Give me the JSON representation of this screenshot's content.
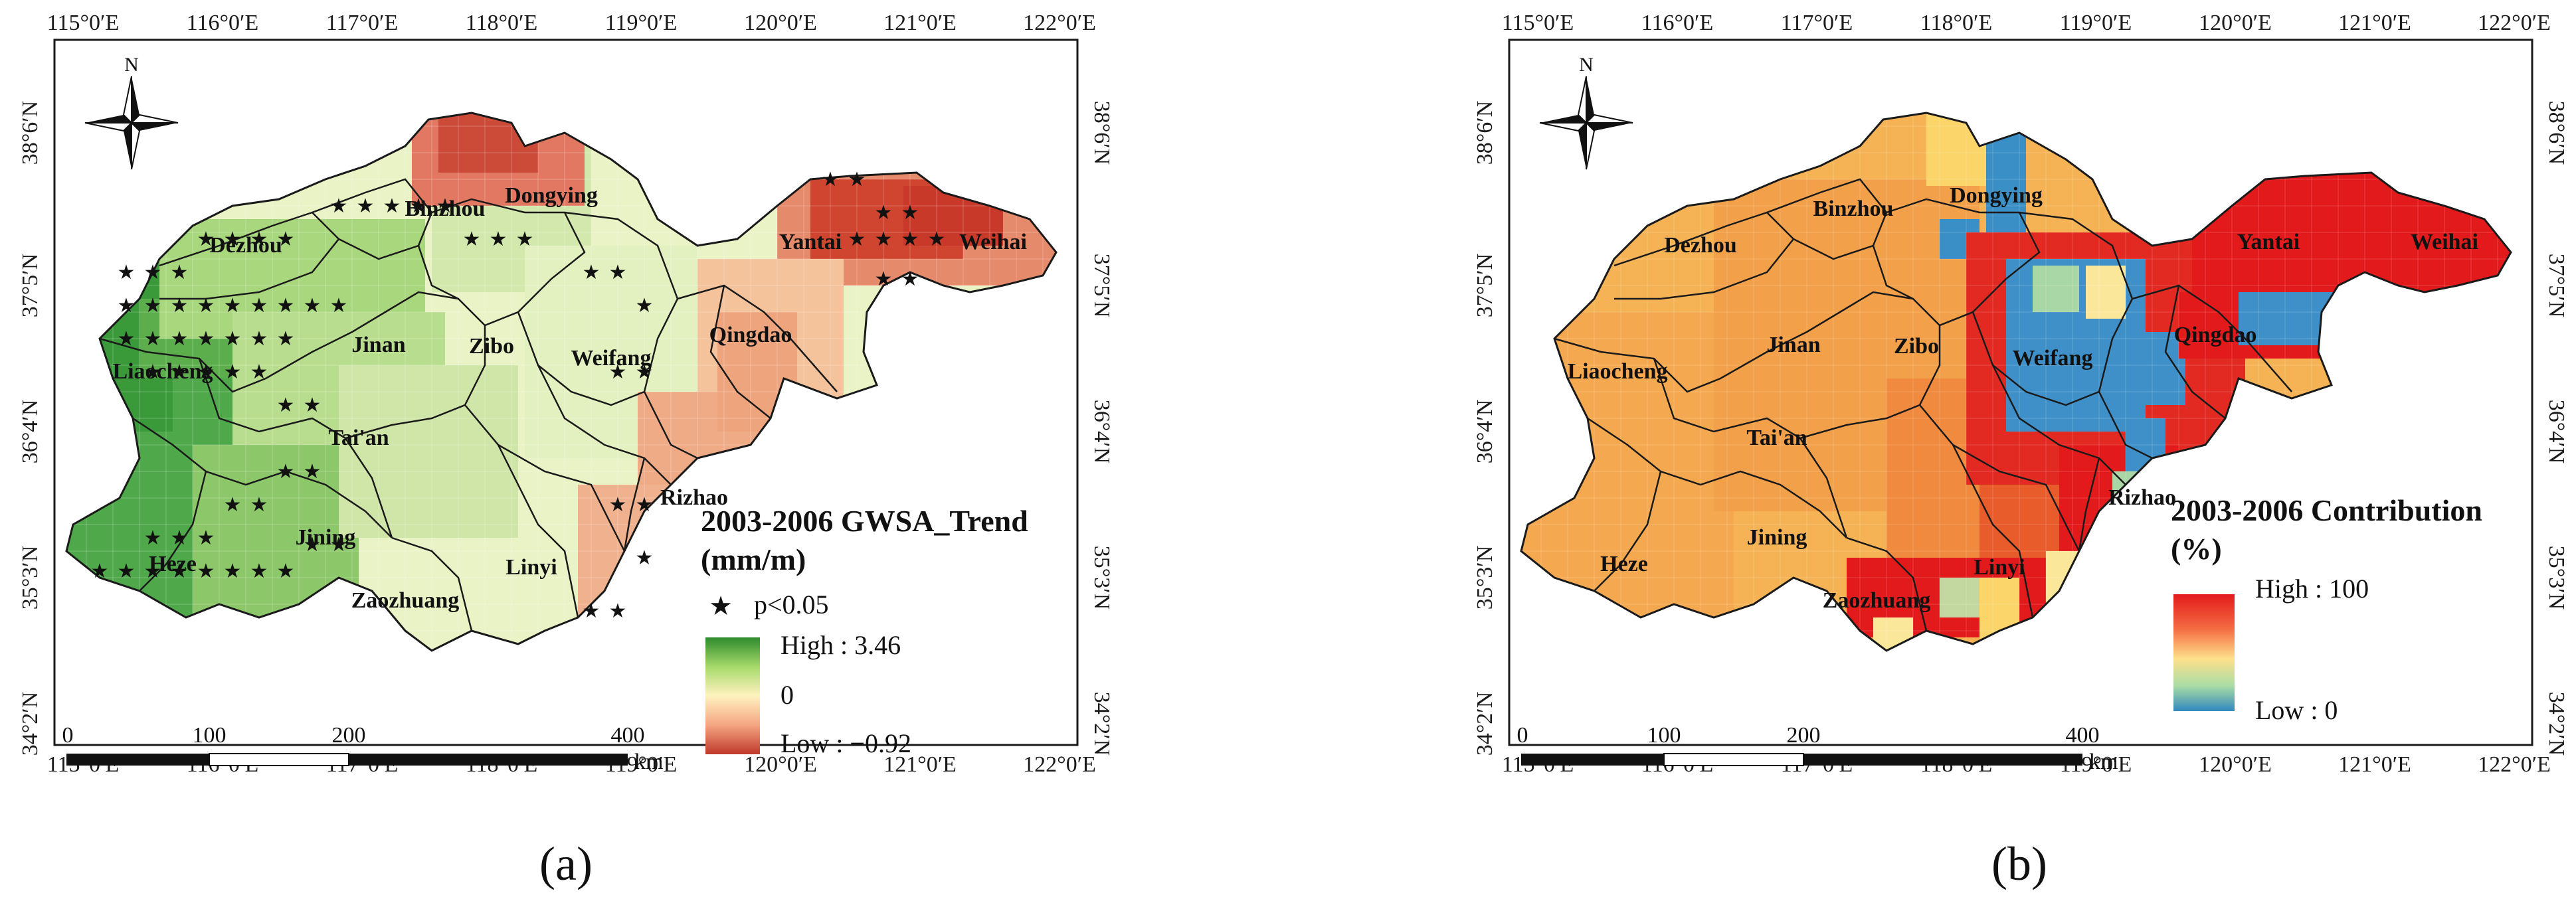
{
  "panels": [
    {
      "id": "a",
      "caption": "(a)",
      "legend": {
        "title_line1": "2003-2006 GWSA_Trend",
        "title_line2": "(mm/m)",
        "significance_label": "p<0.05",
        "high_label": "High : 3.46",
        "zero_label": "0",
        "low_label": "Low : −0.92",
        "ramp_colors": [
          "#2e8b2e",
          "#a6d96a",
          "#fff2c0",
          "#f4a582",
          "#c0392b"
        ]
      },
      "cities": [
        "Dongying",
        "Binzhou",
        "Dezhou",
        "Yantai",
        "Weihai",
        "Liaocheng",
        "Jinan",
        "Zibo",
        "Weifang",
        "Qingdao",
        "Tai'an",
        "Rizhao",
        "Jining",
        "Heze",
        "Linyi",
        "Zaozhuang"
      ]
    },
    {
      "id": "b",
      "caption": "(b)",
      "legend": {
        "title_line1": "2003-2006 Contribution",
        "title_line2": "(%)",
        "high_label": "High : 100",
        "low_label": "Low : 0",
        "ramp_colors": [
          "#e31a1c",
          "#f46d43",
          "#fee08b",
          "#abdda4",
          "#3288bd"
        ]
      },
      "cities": [
        "Binzhou",
        "Dongying",
        "Dezhou",
        "Yantai",
        "Weihai",
        "Liaocheng",
        "Jinan",
        "Zibo",
        "Weifang",
        "Qingdao",
        "Tai'an",
        "Rizhao",
        "Jining",
        "Heze",
        "Linyi",
        "Zaozhuang"
      ]
    }
  ],
  "axes": {
    "top_ticks": [
      "115°0′E",
      "116°0′E",
      "117°0′E",
      "118°0′E",
      "119°0′E",
      "120°0′E",
      "121°0′E",
      "122°0′E"
    ],
    "bottom_ticks": [
      "115°0′E",
      "116°0′E",
      "117°0′E",
      "118°0′E",
      "119°0′E",
      "120°0′E",
      "121°0′E",
      "122°0′E"
    ],
    "lat_ticks": [
      "38°6′N",
      "37°5′N",
      "36°4′N",
      "35°3′N",
      "34°2′N"
    ]
  },
  "scale_bar": {
    "labels": [
      "0",
      "100",
      "200",
      "400"
    ],
    "unit": "km"
  },
  "north_arrow_label": "N"
}
